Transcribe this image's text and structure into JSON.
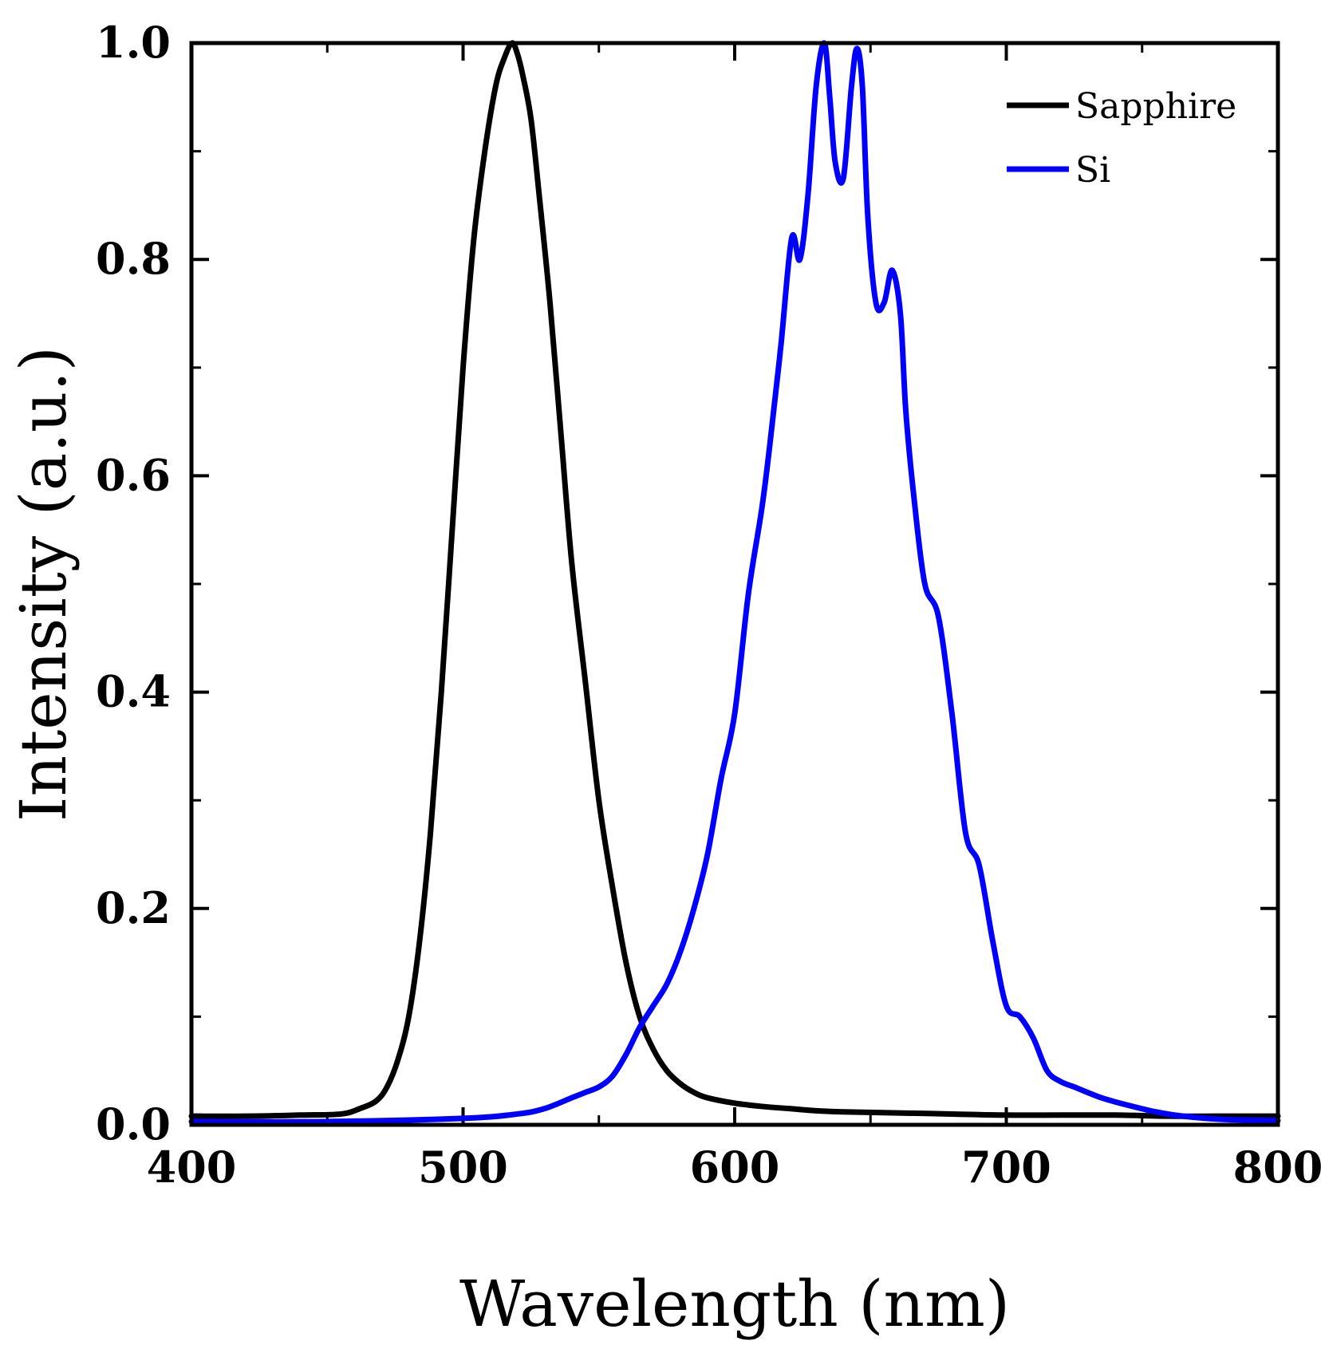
{
  "chart_data": {
    "type": "line",
    "title": "",
    "xlabel": "Wavelength (nm)",
    "ylabel": "Intensity (a.u.)",
    "xlim": [
      400,
      800
    ],
    "ylim": [
      0.0,
      1.0
    ],
    "x_ticks": [
      400,
      500,
      600,
      700,
      800
    ],
    "x_tick_labels": [
      "400",
      "500",
      "600",
      "700",
      "800"
    ],
    "x_minor_step": 50,
    "y_ticks": [
      0.0,
      0.2,
      0.4,
      0.6,
      0.8,
      1.0
    ],
    "y_tick_labels": [
      "0.0",
      "0.2",
      "0.4",
      "0.6",
      "0.8",
      "1.0"
    ],
    "y_minor_step": 0.1,
    "grid": false,
    "legend_position": "top-right",
    "series": [
      {
        "name": "Sapphire",
        "color": "#000000",
        "x": [
          400,
          420,
          440,
          455,
          462,
          468,
          472,
          476,
          480,
          484,
          488,
          492,
          496,
          500,
          504,
          508,
          512,
          515,
          518,
          520,
          522,
          525,
          528,
          532,
          536,
          540,
          545,
          550,
          555,
          560,
          565,
          570,
          575,
          580,
          585,
          590,
          600,
          610,
          620,
          630,
          640,
          660,
          680,
          700,
          720,
          740,
          760,
          780,
          800
        ],
        "values": [
          0.008,
          0.008,
          0.009,
          0.01,
          0.015,
          0.022,
          0.035,
          0.06,
          0.1,
          0.17,
          0.27,
          0.4,
          0.55,
          0.7,
          0.82,
          0.9,
          0.96,
          0.985,
          1.0,
          0.99,
          0.97,
          0.93,
          0.86,
          0.76,
          0.64,
          0.52,
          0.41,
          0.3,
          0.22,
          0.15,
          0.1,
          0.07,
          0.05,
          0.038,
          0.03,
          0.025,
          0.02,
          0.017,
          0.015,
          0.013,
          0.012,
          0.011,
          0.01,
          0.009,
          0.009,
          0.009,
          0.008,
          0.008,
          0.008
        ]
      },
      {
        "name": "Si",
        "color": "#0000ff",
        "x": [
          400,
          450,
          500,
          520,
          530,
          540,
          545,
          550,
          555,
          560,
          565,
          570,
          575,
          580,
          585,
          590,
          595,
          600,
          605,
          610,
          613,
          617,
          621,
          624,
          627,
          630,
          633,
          635,
          637,
          640,
          643,
          645,
          647,
          649,
          652,
          655,
          658,
          661,
          663,
          666,
          670,
          675,
          680,
          685,
          690,
          695,
          700,
          705,
          710,
          715,
          720,
          725,
          735,
          745,
          755,
          765,
          780,
          800
        ],
        "values": [
          0.003,
          0.003,
          0.006,
          0.01,
          0.015,
          0.025,
          0.03,
          0.035,
          0.045,
          0.065,
          0.09,
          0.11,
          0.13,
          0.16,
          0.2,
          0.25,
          0.32,
          0.38,
          0.49,
          0.57,
          0.63,
          0.72,
          0.82,
          0.8,
          0.86,
          0.96,
          1.0,
          0.95,
          0.89,
          0.875,
          0.96,
          0.995,
          0.96,
          0.84,
          0.76,
          0.76,
          0.79,
          0.75,
          0.66,
          0.58,
          0.5,
          0.47,
          0.38,
          0.27,
          0.24,
          0.17,
          0.11,
          0.1,
          0.08,
          0.05,
          0.04,
          0.035,
          0.025,
          0.018,
          0.012,
          0.008,
          0.005,
          0.004
        ]
      }
    ]
  }
}
